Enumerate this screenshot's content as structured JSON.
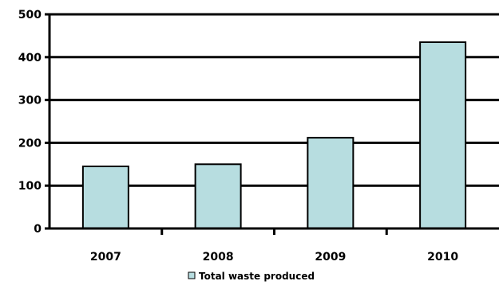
{
  "chart_data": {
    "type": "bar",
    "categories": [
      "2007",
      "2008",
      "2009",
      "2010"
    ],
    "series": [
      {
        "name": "Total waste produced",
        "values": [
          145,
          150,
          212,
          435
        ],
        "color": "#b7dde0"
      }
    ],
    "ylim": [
      0,
      500
    ],
    "yticks": [
      0,
      100,
      200,
      300,
      400,
      500
    ],
    "ytick_labels": [
      "0",
      "100",
      "200",
      "300",
      "400",
      "500"
    ],
    "grid": true,
    "legend": "bottom",
    "legend_label": "Total waste produced",
    "colors": {
      "bar_fill": "#b7dde0",
      "bar_stroke": "#000000",
      "grid": "#000000"
    }
  }
}
